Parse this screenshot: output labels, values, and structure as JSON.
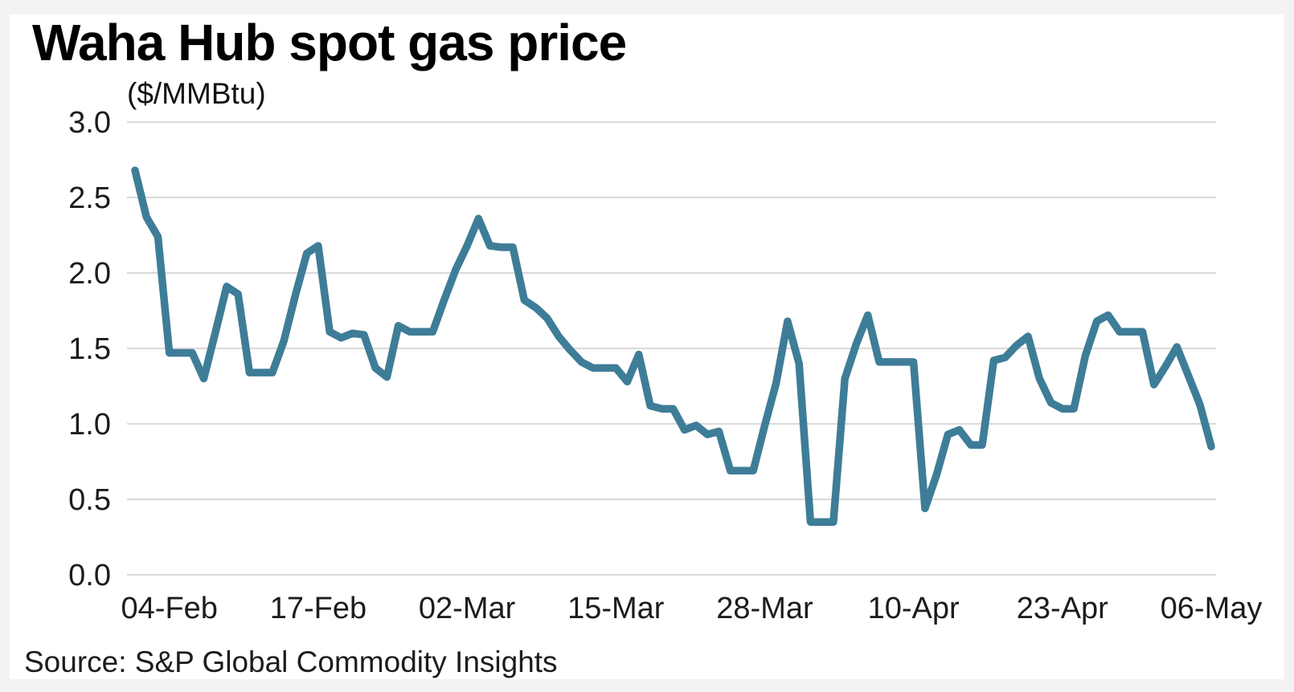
{
  "header": {
    "title": "Waha Hub spot gas price",
    "subtitle": "($/MMBtu)"
  },
  "footer": {
    "source": "Source: S&P Global Commodity Insights"
  },
  "colors": {
    "line": "#3E7D98",
    "grid": "#d9d9d9",
    "tick_text": "#1c1c1c",
    "card_background": "#ffffff",
    "page_background": "#f3f3f3"
  },
  "chart_data": {
    "type": "line",
    "title": "Waha Hub spot gas price",
    "ylabel": "($/MMBtu)",
    "ylim": [
      0.0,
      3.0
    ],
    "grid": "horizontal",
    "legend": "none",
    "y_tick_labels": [
      "0.0",
      "0.5",
      "1.0",
      "1.5",
      "2.0",
      "2.5",
      "3.0"
    ],
    "x_tick_labels": [
      "04-Feb",
      "17-Feb",
      "02-Mar",
      "15-Mar",
      "28-Mar",
      "10-Apr",
      "23-Apr",
      "06-May"
    ],
    "x": [
      "01-Feb",
      "02-Feb",
      "03-Feb",
      "04-Feb",
      "05-Feb",
      "06-Feb",
      "07-Feb",
      "08-Feb",
      "09-Feb",
      "10-Feb",
      "11-Feb",
      "12-Feb",
      "13-Feb",
      "14-Feb",
      "15-Feb",
      "16-Feb",
      "17-Feb",
      "18-Feb",
      "19-Feb",
      "20-Feb",
      "21-Feb",
      "22-Feb",
      "23-Feb",
      "24-Feb",
      "25-Feb",
      "26-Feb",
      "27-Feb",
      "28-Feb",
      "01-Mar",
      "02-Mar",
      "03-Mar",
      "04-Mar",
      "05-Mar",
      "06-Mar",
      "07-Mar",
      "08-Mar",
      "09-Mar",
      "10-Mar",
      "11-Mar",
      "12-Mar",
      "13-Mar",
      "14-Mar",
      "15-Mar",
      "16-Mar",
      "17-Mar",
      "18-Mar",
      "19-Mar",
      "20-Mar",
      "21-Mar",
      "22-Mar",
      "23-Mar",
      "24-Mar",
      "25-Mar",
      "26-Mar",
      "27-Mar",
      "28-Mar",
      "29-Mar",
      "30-Mar",
      "31-Mar",
      "01-Apr",
      "02-Apr",
      "03-Apr",
      "04-Apr",
      "05-Apr",
      "06-Apr",
      "07-Apr",
      "08-Apr",
      "09-Apr",
      "10-Apr",
      "11-Apr",
      "12-Apr",
      "13-Apr",
      "14-Apr",
      "15-Apr",
      "16-Apr",
      "17-Apr",
      "18-Apr",
      "19-Apr",
      "20-Apr",
      "21-Apr",
      "22-Apr",
      "23-Apr",
      "24-Apr",
      "25-Apr",
      "26-Apr",
      "27-Apr",
      "28-Apr",
      "29-Apr",
      "30-Apr",
      "01-May",
      "02-May",
      "03-May",
      "04-May",
      "05-May",
      "06-May"
    ],
    "values": [
      2.68,
      2.37,
      2.24,
      1.47,
      1.47,
      1.47,
      1.3,
      1.6,
      1.91,
      1.86,
      1.34,
      1.34,
      1.34,
      1.55,
      1.85,
      2.13,
      2.18,
      1.61,
      1.57,
      1.6,
      1.59,
      1.37,
      1.31,
      1.65,
      1.61,
      1.61,
      1.61,
      1.82,
      2.02,
      2.18,
      2.36,
      2.18,
      2.17,
      2.17,
      1.82,
      1.77,
      1.7,
      1.58,
      1.49,
      1.41,
      1.37,
      1.37,
      1.37,
      1.28,
      1.46,
      1.12,
      1.1,
      1.1,
      0.96,
      0.99,
      0.93,
      0.95,
      0.69,
      0.69,
      0.69,
      0.99,
      1.27,
      1.68,
      1.4,
      0.35,
      0.35,
      0.35,
      1.3,
      1.53,
      1.72,
      1.41,
      1.41,
      1.41,
      1.41,
      0.44,
      0.66,
      0.93,
      0.96,
      0.86,
      0.86,
      1.42,
      1.44,
      1.52,
      1.58,
      1.3,
      1.14,
      1.1,
      1.1,
      1.45,
      1.68,
      1.72,
      1.61,
      1.61,
      1.61,
      1.26,
      1.38,
      1.51,
      1.32,
      1.13,
      0.85
    ]
  }
}
